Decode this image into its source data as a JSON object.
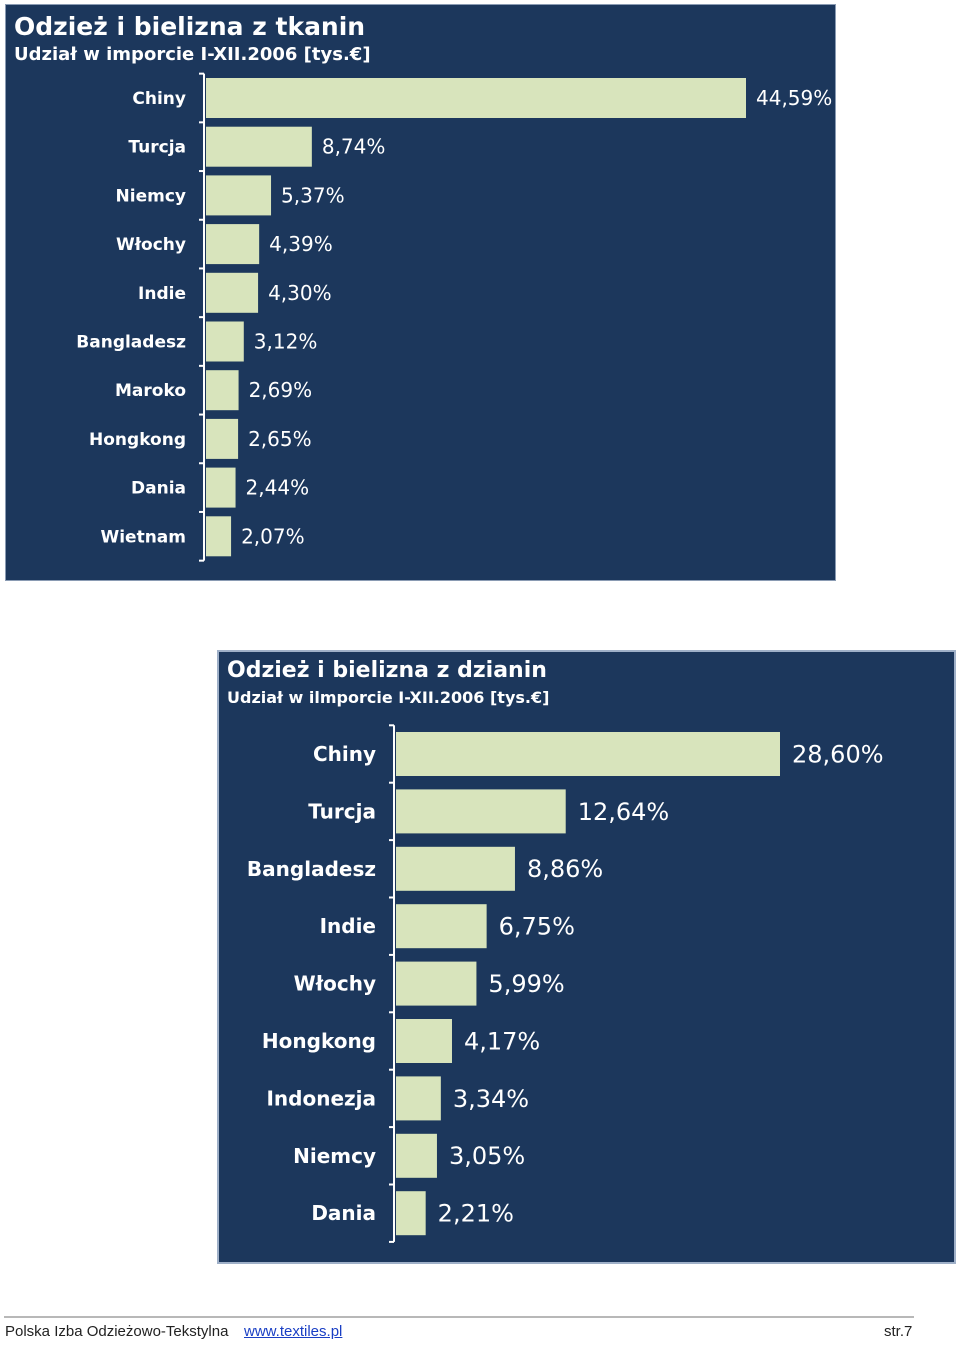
{
  "chart_data": [
    {
      "type": "bar",
      "orientation": "horizontal",
      "title": "Odzież i bielizna z tkanin",
      "subtitle": "Udział w imporcie I-XII.2006 [tys.€]",
      "categories": [
        "Chiny",
        "Turcja",
        "Niemcy",
        "Włochy",
        "Indie",
        "Bangladesz",
        "Maroko",
        "Hongkong",
        "Dania",
        "Wietnam"
      ],
      "values": [
        44.59,
        8.74,
        5.37,
        4.39,
        4.3,
        3.12,
        2.69,
        2.65,
        2.44,
        2.07
      ],
      "value_labels": [
        "44,59%",
        "8,74%",
        "5,37%",
        "4,39%",
        "4,30%",
        "3,12%",
        "2,69%",
        "2,65%",
        "2,44%",
        "2,07%"
      ],
      "bar_color": "#d8e4bc",
      "background_color": "#1c375c",
      "legend": "none",
      "grid": false
    },
    {
      "type": "bar",
      "orientation": "horizontal",
      "title": "Odzież i bielizna z dzianin",
      "subtitle": "Udział w ilmporcie I-XII.2006 [tys.€]",
      "categories": [
        "Chiny",
        "Turcja",
        "Bangladesz",
        "Indie",
        "Włochy",
        "Hongkong",
        "Indonezja",
        "Niemcy",
        "Dania"
      ],
      "values": [
        28.6,
        12.64,
        8.86,
        6.75,
        5.99,
        4.17,
        3.34,
        3.05,
        2.21
      ],
      "value_labels": [
        "28,60%",
        "12,64%",
        "8,86%",
        "6,75%",
        "5,99%",
        "4,17%",
        "3,34%",
        "3,05%",
        "2,21%"
      ],
      "bar_color": "#d8e4bc",
      "background_color": "#1c375c",
      "legend": "none",
      "grid": false
    }
  ],
  "footer": {
    "organization": "Polska Izba Odzieżowo-Tekstylna",
    "website": "www.textiles.pl",
    "page": "str.7"
  }
}
